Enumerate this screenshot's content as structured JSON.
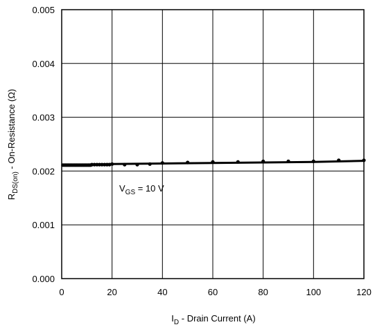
{
  "chart_data": {
    "type": "line",
    "title": "",
    "xlabel": {
      "main": "I",
      "sub": "D",
      "rest": " - Drain Current (A)"
    },
    "ylabel": {
      "main": "R",
      "sub": "DS(on)",
      "rest": " - On-Resistance (Ω)"
    },
    "xlim": [
      0,
      120
    ],
    "ylim": [
      0,
      0.005
    ],
    "xticks": [
      0,
      20,
      40,
      60,
      80,
      100,
      120
    ],
    "yticks": [
      "0.000",
      "0.001",
      "0.002",
      "0.003",
      "0.004",
      "0.005"
    ],
    "grid": true,
    "annotation": {
      "main": "V",
      "sub": "GS",
      "rest": " = 10 V"
    },
    "series": [
      {
        "x": [
          0.5,
          1,
          1.5,
          2,
          2.5,
          3,
          3.5,
          4,
          4.5,
          5,
          5.5,
          6,
          6.5,
          7,
          7.5,
          8,
          8.5,
          9,
          9.5,
          10,
          10.5,
          11,
          11.5,
          12,
          13,
          14,
          15,
          16,
          17,
          18,
          19,
          20,
          25,
          30,
          35,
          40,
          50,
          60,
          70,
          80,
          90,
          100,
          110,
          120
        ],
        "y": [
          0.00211,
          0.00211,
          0.00211,
          0.00211,
          0.00211,
          0.00211,
          0.00211,
          0.00211,
          0.00211,
          0.00211,
          0.00211,
          0.00211,
          0.00211,
          0.00211,
          0.00211,
          0.00211,
          0.00211,
          0.00211,
          0.00211,
          0.00211,
          0.00211,
          0.00211,
          0.00211,
          0.00212,
          0.00212,
          0.00212,
          0.00212,
          0.00212,
          0.00212,
          0.00212,
          0.00212,
          0.00213,
          0.00212,
          0.00212,
          0.00213,
          0.00215,
          0.00216,
          0.00217,
          0.00217,
          0.00218,
          0.00218,
          0.00218,
          0.0022,
          0.0022
        ],
        "fit": [
          [
            0,
            0.00211
          ],
          [
            20,
            0.00213
          ],
          [
            40,
            0.00214
          ],
          [
            60,
            0.00215
          ],
          [
            80,
            0.00216
          ],
          [
            100,
            0.00217
          ],
          [
            120,
            0.00219
          ]
        ]
      }
    ]
  }
}
